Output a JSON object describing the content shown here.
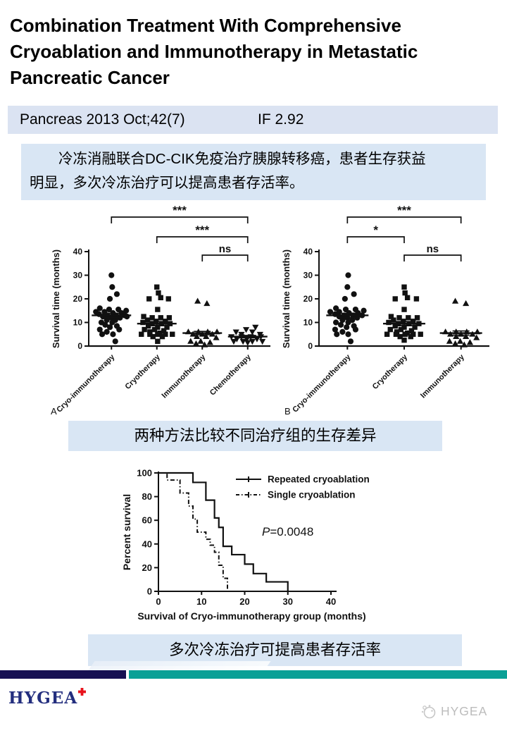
{
  "title": "Combination Treatment With Comprehensive Cryoablation and Immunotherapy in Metastatic Pancreatic Cancer",
  "journal_bar": {
    "citation": "Pancreas 2013 Oct;42(7)",
    "impact_factor": "IF 2.92",
    "bg": "#dbe3f2"
  },
  "summary_box": {
    "lines": [
      "　　冷冻消融联合DC-CIK免疫治疗胰腺转移癌，患者生存获益",
      "明显，多次冷冻治疗可以提高患者存活率。"
    ],
    "bg": "#d9e6f4"
  },
  "captions": {
    "comparison": "两种方法比较不同治疗组的生存差异",
    "conclusion": "多次冷冻治疗可提高患者存活率"
  },
  "footer": {
    "logo_text": "HYGEA",
    "watermark_text": "HYGEA",
    "navy": "#161052",
    "teal": "#0aa096",
    "logo_color": "#232e7e",
    "cross_color": "#e8131c",
    "watermark_color": "#bcbcbc"
  },
  "chart_data": [
    {
      "id": "chart-a",
      "type": "scatter",
      "panel_label": "A",
      "ylabel": "Survival time (months)",
      "ylim": [
        0,
        40
      ],
      "yticks": [
        0,
        10,
        20,
        30,
        40
      ],
      "significance": [
        {
          "label": "***",
          "from": 0,
          "to": 3
        },
        {
          "label": "***",
          "from": 1,
          "to": 3
        },
        {
          "label": "ns",
          "from": 2,
          "to": 3
        }
      ],
      "groups": [
        {
          "label": "Cryo-immunotherapy",
          "marker": "circle",
          "mean": 13,
          "sem": 0.9,
          "points": [
            [
              0,
              30
            ],
            [
              0.02,
              25
            ],
            [
              0.14,
              22
            ],
            [
              -0.04,
              20
            ],
            [
              -0.3,
              16
            ],
            [
              -0.06,
              15.5
            ],
            [
              0.18,
              15.5
            ],
            [
              0.38,
              15
            ],
            [
              -0.4,
              14.5
            ],
            [
              -0.18,
              14.5
            ],
            [
              0.04,
              14
            ],
            [
              0.26,
              14
            ],
            [
              -0.32,
              13.5
            ],
            [
              -0.1,
              13
            ],
            [
              0.12,
              13
            ],
            [
              0.34,
              13
            ],
            [
              -0.22,
              12.5
            ],
            [
              0,
              12
            ],
            [
              0.22,
              12
            ],
            [
              0.4,
              12.5
            ],
            [
              -0.12,
              11
            ],
            [
              0.1,
              11
            ],
            [
              -0.26,
              10
            ],
            [
              0.02,
              10
            ],
            [
              -0.16,
              9
            ],
            [
              0.14,
              8.5
            ],
            [
              -0.04,
              8
            ],
            [
              -0.3,
              7
            ],
            [
              0.2,
              7
            ],
            [
              -0.12,
              6
            ],
            [
              0.04,
              5
            ],
            [
              -0.24,
              5
            ],
            [
              0.1,
              2
            ]
          ]
        },
        {
          "label": "Cryotherapy",
          "marker": "square",
          "mean": 9.5,
          "sem": 0.9,
          "points": [
            [
              0,
              25
            ],
            [
              0.04,
              22.5
            ],
            [
              -0.2,
              20
            ],
            [
              0.1,
              20.5
            ],
            [
              0.3,
              20
            ],
            [
              0.02,
              15.5
            ],
            [
              -0.34,
              12.5
            ],
            [
              -0.12,
              12
            ],
            [
              0.1,
              12
            ],
            [
              0.32,
              12
            ],
            [
              -0.24,
              11
            ],
            [
              -0.02,
              10.5
            ],
            [
              0.22,
              10.5
            ],
            [
              -0.36,
              10
            ],
            [
              -0.12,
              9.5
            ],
            [
              0.12,
              9.5
            ],
            [
              0.34,
              9.5
            ],
            [
              -0.22,
              8.5
            ],
            [
              0.02,
              8
            ],
            [
              0.26,
              8
            ],
            [
              -0.32,
              7
            ],
            [
              -0.06,
              7
            ],
            [
              0.18,
              6.5
            ],
            [
              -0.18,
              6
            ],
            [
              0.08,
              5.5
            ],
            [
              -0.4,
              5
            ],
            [
              -0.18,
              5
            ],
            [
              0.02,
              5
            ],
            [
              0.22,
              5
            ],
            [
              0.4,
              5
            ],
            [
              -0.1,
              4
            ],
            [
              0.14,
              4
            ],
            [
              0.02,
              2
            ]
          ]
        },
        {
          "label": "Immunotherapy",
          "marker": "triangle-up",
          "mean": 5.5,
          "sem": 0.7,
          "points": [
            [
              -0.12,
              19
            ],
            [
              0.12,
              18
            ],
            [
              -0.36,
              6
            ],
            [
              -0.1,
              6
            ],
            [
              0.14,
              6
            ],
            [
              0.38,
              6
            ],
            [
              -0.24,
              5
            ],
            [
              0,
              5
            ],
            [
              0.26,
              5
            ],
            [
              -0.14,
              4
            ],
            [
              0.1,
              4
            ],
            [
              0.36,
              3.5
            ],
            [
              -0.3,
              2
            ],
            [
              -0.04,
              2
            ],
            [
              0.2,
              1.5
            ],
            [
              -0.16,
              1
            ],
            [
              0.06,
              0.5
            ]
          ]
        },
        {
          "label": "Chemotherapy",
          "marker": "triangle-down",
          "mean": 4,
          "sem": 0.5,
          "points": [
            [
              0.2,
              8
            ],
            [
              -0.04,
              7
            ],
            [
              -0.3,
              6
            ],
            [
              0.12,
              6
            ],
            [
              -0.16,
              5
            ],
            [
              0.32,
              5
            ],
            [
              -0.42,
              4
            ],
            [
              -0.16,
              4
            ],
            [
              0.08,
              4
            ],
            [
              0.34,
              4
            ],
            [
              -0.28,
              3
            ],
            [
              -0.02,
              3
            ],
            [
              0.24,
              3
            ],
            [
              -0.36,
              2
            ],
            [
              -0.12,
              2
            ],
            [
              0.12,
              2
            ],
            [
              0.38,
              2
            ],
            [
              0,
              1.5
            ]
          ]
        }
      ]
    },
    {
      "id": "chart-b",
      "type": "scatter",
      "panel_label": "B",
      "ylabel": "Survival time (months)",
      "ylim": [
        0,
        40
      ],
      "yticks": [
        0,
        10,
        20,
        30,
        40
      ],
      "significance": [
        {
          "label": "***",
          "from": 0,
          "to": 2
        },
        {
          "label": "*",
          "from": 0,
          "to": 1
        },
        {
          "label": "ns",
          "from": 1,
          "to": 2
        }
      ],
      "groups": [
        {
          "label": "Cryo-immunotherapy",
          "marker": "circle",
          "mean": 13,
          "sem": 0.9,
          "points": [
            [
              0.02,
              30
            ],
            [
              0,
              25
            ],
            [
              0.16,
              22
            ],
            [
              -0.06,
              20
            ],
            [
              -0.28,
              16
            ],
            [
              -0.04,
              15.5
            ],
            [
              0.2,
              15.5
            ],
            [
              0.4,
              15
            ],
            [
              -0.42,
              14.5
            ],
            [
              -0.2,
              14.5
            ],
            [
              0.04,
              14
            ],
            [
              0.26,
              14
            ],
            [
              -0.3,
              13.5
            ],
            [
              -0.08,
              13
            ],
            [
              0.14,
              13
            ],
            [
              0.36,
              13
            ],
            [
              -0.2,
              12.5
            ],
            [
              0,
              12
            ],
            [
              0.24,
              12
            ],
            [
              -0.12,
              11
            ],
            [
              0.12,
              11
            ],
            [
              -0.28,
              10
            ],
            [
              0.02,
              10
            ],
            [
              -0.16,
              9
            ],
            [
              0.16,
              8.5
            ],
            [
              -0.02,
              8
            ],
            [
              -0.3,
              7
            ],
            [
              0.2,
              7
            ],
            [
              -0.12,
              6
            ],
            [
              0.02,
              5
            ],
            [
              -0.26,
              5
            ],
            [
              0.08,
              2
            ]
          ]
        },
        {
          "label": "Cryotherapy",
          "marker": "square",
          "mean": 9.5,
          "sem": 0.9,
          "points": [
            [
              0,
              25
            ],
            [
              0.02,
              22.5
            ],
            [
              -0.22,
              20
            ],
            [
              0.08,
              20.5
            ],
            [
              0.3,
              20
            ],
            [
              0,
              15.5
            ],
            [
              -0.32,
              12.5
            ],
            [
              -0.12,
              12
            ],
            [
              0.1,
              12
            ],
            [
              0.32,
              12
            ],
            [
              -0.26,
              11
            ],
            [
              -0.02,
              10.5
            ],
            [
              0.22,
              10.5
            ],
            [
              -0.38,
              10
            ],
            [
              -0.14,
              9.5
            ],
            [
              0.12,
              9.5
            ],
            [
              0.36,
              9.5
            ],
            [
              -0.22,
              8.5
            ],
            [
              0,
              8
            ],
            [
              0.26,
              8
            ],
            [
              -0.34,
              7
            ],
            [
              -0.08,
              7
            ],
            [
              0.18,
              6.5
            ],
            [
              -0.18,
              6
            ],
            [
              0.08,
              5.5
            ],
            [
              -0.42,
              5
            ],
            [
              -0.2,
              5
            ],
            [
              0.02,
              5
            ],
            [
              0.22,
              5
            ],
            [
              0.4,
              5
            ],
            [
              -0.1,
              4
            ],
            [
              0.16,
              4
            ],
            [
              0,
              2.5
            ]
          ]
        },
        {
          "label": "Immunotherapy",
          "marker": "triangle-up",
          "mean": 5.5,
          "sem": 0.9,
          "points": [
            [
              -0.14,
              19
            ],
            [
              0.12,
              18
            ],
            [
              -0.38,
              6
            ],
            [
              -0.12,
              6
            ],
            [
              0.14,
              6
            ],
            [
              0.4,
              6
            ],
            [
              -0.26,
              5
            ],
            [
              0,
              5
            ],
            [
              0.28,
              5
            ],
            [
              -0.12,
              4
            ],
            [
              0.12,
              4
            ],
            [
              0.38,
              3.5
            ],
            [
              -0.28,
              2
            ],
            [
              -0.02,
              2
            ],
            [
              0.22,
              1.5
            ],
            [
              -0.14,
              1
            ],
            [
              0.08,
              0.5
            ]
          ]
        }
      ]
    },
    {
      "id": "chart-km",
      "type": "line-step",
      "ylabel": "Percent survival",
      "xlabel": "Survival of Cryo-immunotherapy group (months)",
      "xlim": [
        0,
        40
      ],
      "xticks": [
        0,
        10,
        20,
        30,
        40
      ],
      "ylim": [
        0,
        100
      ],
      "yticks": [
        0,
        20,
        40,
        60,
        80,
        100
      ],
      "annotation": "P=0.0048",
      "legend_position": "top-right-inside",
      "series": [
        {
          "name": "Repeated cryoablation",
          "style": "solid",
          "points": [
            [
              0,
              100
            ],
            [
              8,
              100
            ],
            [
              8,
              92
            ],
            [
              11,
              92
            ],
            [
              11,
              77
            ],
            [
              13,
              77
            ],
            [
              13,
              62
            ],
            [
              14,
              62
            ],
            [
              14,
              54
            ],
            [
              15,
              54
            ],
            [
              15,
              38
            ],
            [
              17,
              38
            ],
            [
              17,
              31
            ],
            [
              20,
              31
            ],
            [
              20,
              23
            ],
            [
              22,
              23
            ],
            [
              22,
              15
            ],
            [
              25,
              15
            ],
            [
              25,
              8
            ],
            [
              30,
              8
            ],
            [
              30,
              0
            ]
          ]
        },
        {
          "name": "Single cryoablation",
          "style": "dashdot",
          "points": [
            [
              0,
              100
            ],
            [
              2,
              100
            ],
            [
              2,
              94
            ],
            [
              5,
              94
            ],
            [
              5,
              83
            ],
            [
              7,
              83
            ],
            [
              7,
              72
            ],
            [
              8,
              72
            ],
            [
              8,
              61
            ],
            [
              9,
              61
            ],
            [
              9,
              50
            ],
            [
              11,
              50
            ],
            [
              11,
              44
            ],
            [
              12,
              44
            ],
            [
              12,
              39
            ],
            [
              13,
              39
            ],
            [
              13,
              33
            ],
            [
              14,
              33
            ],
            [
              14,
              22
            ],
            [
              15,
              22
            ],
            [
              15,
              11
            ],
            [
              16,
              11
            ],
            [
              16,
              0
            ]
          ]
        }
      ]
    }
  ]
}
